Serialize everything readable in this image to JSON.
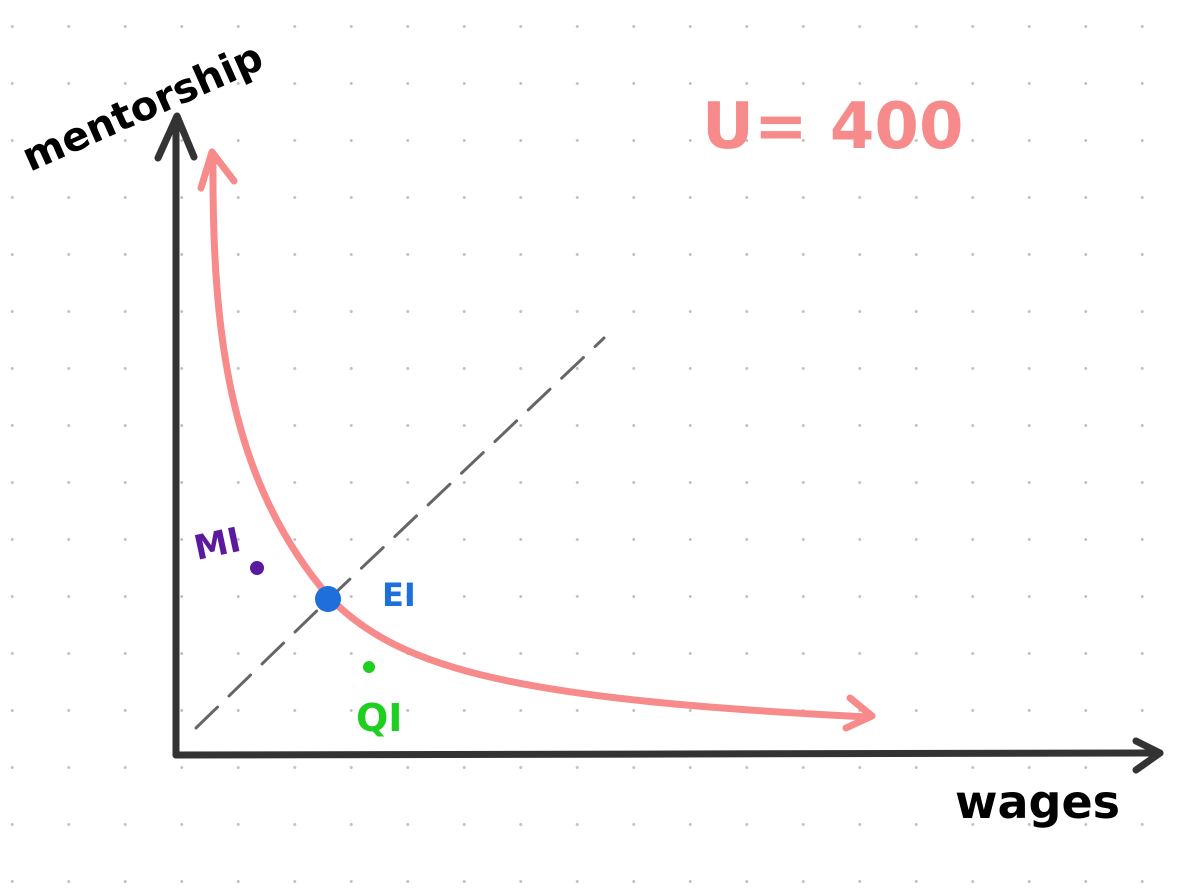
{
  "diagram": {
    "axis_y_label": "mentorship",
    "axis_x_label": "wages",
    "curve_label": "U= 400",
    "points": [
      {
        "label": "MI",
        "color": "#5b1a9e"
      },
      {
        "label": "EI",
        "color": "#1e6fd9"
      },
      {
        "label": "QI",
        "color": "#1fcf1f"
      }
    ],
    "colors": {
      "axes": "#333333",
      "curve": "#f78a8a",
      "dashed_line": "#666666",
      "text": "#000000"
    }
  }
}
